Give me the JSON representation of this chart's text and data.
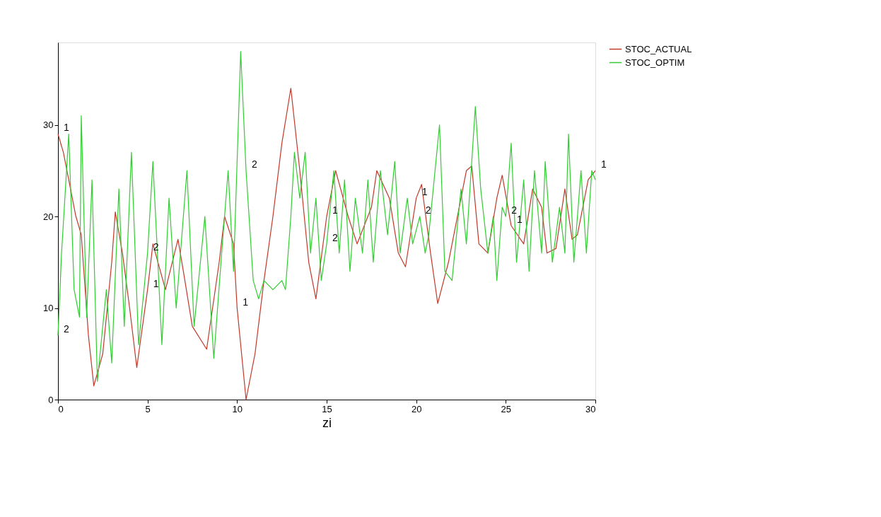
{
  "chart_data": {
    "type": "line",
    "xlabel": "zi",
    "xlim": [
      0,
      30
    ],
    "ylim": [
      0,
      39
    ],
    "xticks": [
      0,
      5,
      10,
      15,
      20,
      25,
      30
    ],
    "yticks": [
      0,
      10,
      20,
      30
    ],
    "grid": false,
    "legend": "right",
    "marker": "none",
    "line_style": "solid",
    "series": [
      {
        "name": "STOC_ACTUAL",
        "color": "#c0392b",
        "x": [
          0,
          0.3,
          1,
          1.3,
          1.7,
          2,
          2.5,
          3,
          3.2,
          3.6,
          4,
          4.4,
          5,
          5.3,
          6,
          6.7,
          7,
          7.5,
          8.3,
          9,
          9.3,
          9.8,
          10,
          10.5,
          11,
          11.5,
          12,
          12.5,
          13,
          13.5,
          14,
          14.4,
          15,
          15.5,
          16.2,
          16.7,
          17.5,
          17.8,
          18.5,
          19,
          19.4,
          20,
          20.3,
          20.8,
          21.2,
          21.8,
          22.3,
          22.8,
          23.1,
          23.5,
          24,
          24.5,
          24.8,
          25.3,
          26,
          26.5,
          27,
          27.3,
          27.8,
          28.3,
          28.7,
          29,
          29.6,
          30
        ],
        "values": [
          29,
          27,
          20,
          18,
          7,
          1.5,
          5,
          15,
          20.5,
          16,
          10,
          3.5,
          12,
          17,
          12,
          17.5,
          14,
          8,
          5.5,
          15,
          20,
          17,
          10,
          0,
          5,
          13,
          20,
          28,
          34,
          25,
          15,
          11,
          20,
          25,
          20,
          17,
          21,
          25,
          22,
          16,
          14.5,
          22,
          23.5,
          16,
          10.5,
          15,
          20,
          25,
          25.5,
          17,
          16,
          22,
          24.5,
          19,
          17,
          23,
          21,
          16,
          16.5,
          23,
          17.5,
          18,
          24,
          25
        ]
      },
      {
        "name": "STOC_OPTIM",
        "color": "#33cc33",
        "x": [
          0,
          0.2,
          0.6,
          0.9,
          1.2,
          1.3,
          1.6,
          1.9,
          2.2,
          2.7,
          3,
          3.4,
          3.7,
          4.1,
          4.5,
          5,
          5.3,
          5.8,
          6.2,
          6.6,
          7.2,
          7.6,
          8.2,
          8.7,
          9.1,
          9.5,
          9.8,
          10.2,
          10.5,
          10.9,
          11.2,
          11.5,
          12,
          12.5,
          12.7,
          13,
          13.2,
          13.5,
          13.8,
          14.1,
          14.4,
          14.7,
          15,
          15.4,
          15.7,
          16,
          16.3,
          16.6,
          17,
          17.3,
          17.6,
          18,
          18.4,
          18.8,
          19.1,
          19.5,
          19.8,
          20.2,
          20.5,
          20.7,
          21.3,
          21.6,
          22,
          22.5,
          22.8,
          23.3,
          23.6,
          24,
          24.3,
          24.5,
          24.8,
          25,
          25.3,
          25.6,
          26,
          26.3,
          26.6,
          27,
          27.2,
          27.6,
          28,
          28.3,
          28.5,
          28.8,
          29.2,
          29.5,
          29.8,
          30
        ],
        "values": [
          7,
          16,
          29,
          12,
          9,
          31,
          9,
          24,
          2,
          12,
          4,
          23,
          8,
          27,
          6,
          16,
          26,
          6,
          22,
          10,
          25,
          8,
          20,
          4.5,
          15,
          25,
          14,
          38,
          25,
          13,
          11,
          13,
          12,
          13,
          12,
          20,
          27,
          22,
          27,
          16,
          22,
          13,
          17,
          25,
          16,
          24,
          14,
          22,
          16,
          24,
          15,
          25,
          18,
          26,
          16,
          22,
          17,
          20,
          16,
          18,
          30,
          14,
          13,
          23,
          17,
          32,
          23,
          16,
          20,
          13,
          21,
          20,
          28,
          15,
          24,
          14,
          25,
          16,
          26,
          15,
          21,
          16,
          29,
          15,
          25,
          16,
          25,
          24
        ]
      }
    ],
    "annotations": [
      {
        "text": "1",
        "x": 0,
        "y": 29
      },
      {
        "text": "1",
        "x": 5,
        "y": 12
      },
      {
        "text": "1",
        "x": 10,
        "y": 10
      },
      {
        "text": "1",
        "x": 15,
        "y": 20
      },
      {
        "text": "1",
        "x": 20,
        "y": 22
      },
      {
        "text": "1",
        "x": 25.3,
        "y": 19
      },
      {
        "text": "1",
        "x": 30,
        "y": 25
      },
      {
        "text": "2",
        "x": 0,
        "y": 7
      },
      {
        "text": "2",
        "x": 5,
        "y": 16
      },
      {
        "text": "2",
        "x": 10.5,
        "y": 25
      },
      {
        "text": "2",
        "x": 15,
        "y": 17
      },
      {
        "text": "2",
        "x": 20.2,
        "y": 20
      },
      {
        "text": "2",
        "x": 25,
        "y": 20
      }
    ]
  }
}
